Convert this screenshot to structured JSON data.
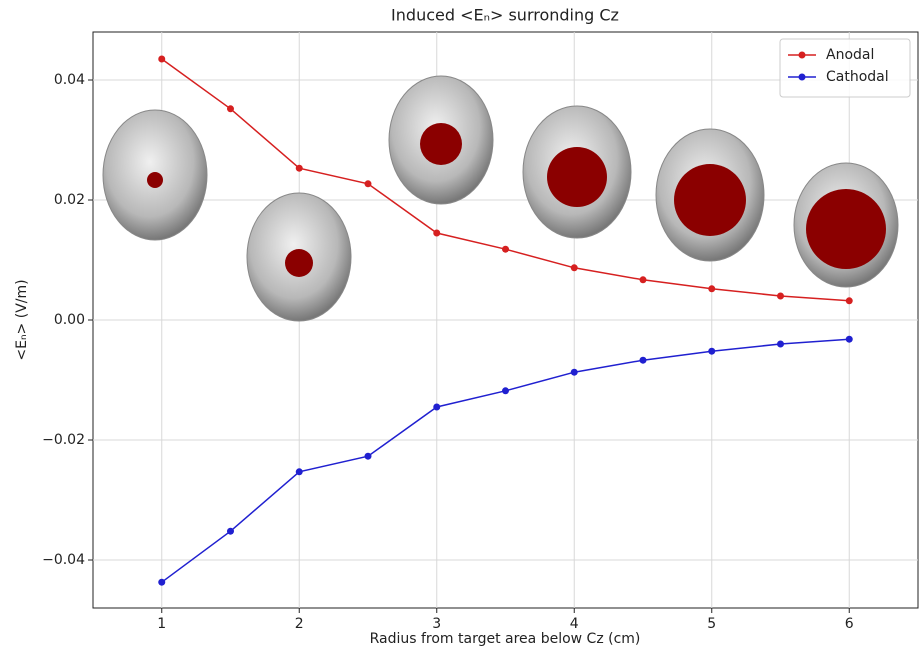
{
  "chart_data": {
    "type": "line",
    "title": "Induced <Eₙ> surronding Cz",
    "x_label": "Radius from target area below Cz (cm)",
    "y_label": "<Eₙ> (V/m)",
    "x": [
      1,
      1.5,
      2,
      2.5,
      3,
      3.5,
      4,
      4.5,
      5,
      5.5,
      6
    ],
    "series": [
      {
        "name": "Anodal",
        "color": "#d62020",
        "values": [
          0.0435,
          0.0352,
          0.0253,
          0.0227,
          0.0145,
          0.0118,
          0.0087,
          0.0067,
          0.0052,
          0.004,
          0.0032
        ]
      },
      {
        "name": "Cathodal",
        "color": "#2020d0",
        "values": [
          -0.0437,
          -0.0352,
          -0.0253,
          -0.0227,
          -0.0145,
          -0.0118,
          -0.0087,
          -0.0067,
          -0.0052,
          -0.004,
          -0.0032
        ]
      }
    ],
    "xlim": [
      0.5,
      6.5
    ],
    "xticks": [
      1,
      2,
      3,
      4,
      5,
      6
    ],
    "ylim": [
      -0.048,
      0.048
    ],
    "yticks": [
      {
        "value": -0.04,
        "label": "−0.04"
      },
      {
        "value": -0.02,
        "label": "−0.02"
      },
      {
        "value": 0,
        "label": "0.00"
      },
      0.02,
      0.04
    ],
    "grid": true,
    "legend": "upper right"
  }
}
